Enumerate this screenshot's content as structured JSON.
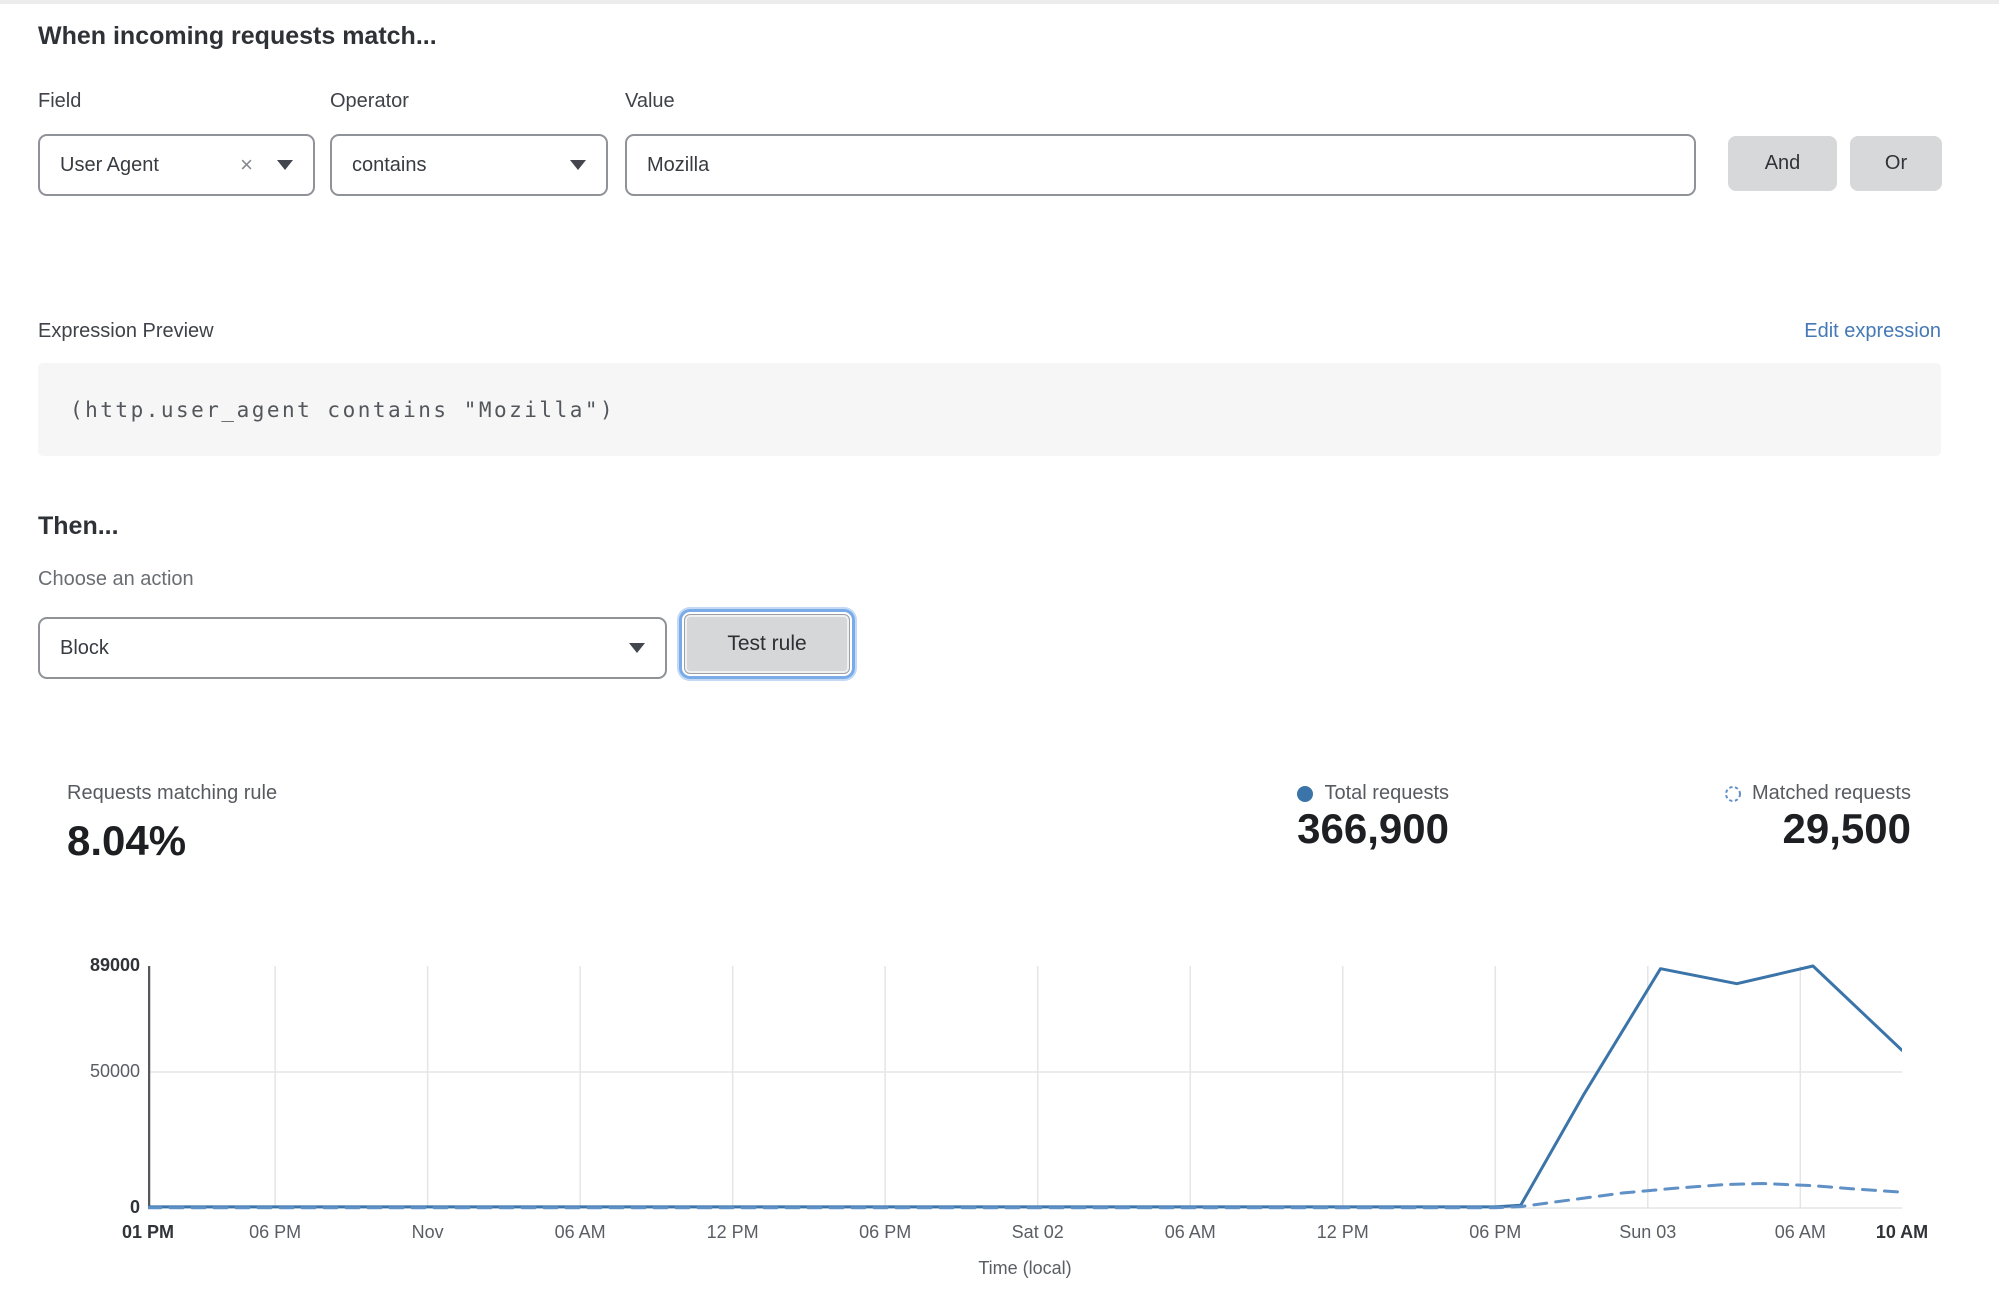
{
  "rule_builder": {
    "heading": "When incoming requests match...",
    "field": {
      "label": "Field",
      "value": "User Agent"
    },
    "operator": {
      "label": "Operator",
      "value": "contains"
    },
    "value": {
      "label": "Value",
      "value": "Mozilla"
    },
    "and_label": "And",
    "or_label": "Or"
  },
  "expression": {
    "label": "Expression Preview",
    "edit_link": "Edit expression",
    "code": "(http.user_agent contains \"Mozilla\")"
  },
  "action": {
    "heading": "Then...",
    "label": "Choose an action",
    "value": "Block",
    "test_button": "Test rule"
  },
  "stats": {
    "matching": {
      "label": "Requests matching rule",
      "value": "8.04%"
    },
    "total": {
      "label": "Total requests",
      "value": "366,900"
    },
    "matched": {
      "label": "Matched requests",
      "value": "29,500"
    }
  },
  "chart_data": {
    "type": "line",
    "title": "",
    "xlabel": "Time (local)",
    "ylabel": "",
    "ylim": [
      0,
      89000
    ],
    "x_hours_total": 69,
    "grid": true,
    "legend_position": "top-right",
    "colors": {
      "total": "#3a74a8",
      "matched": "#5f90c6",
      "grid": "#e5e5e5",
      "axis": "#54575c"
    },
    "y_ticks": [
      {
        "value": 0,
        "label": "0",
        "bold": true
      },
      {
        "value": 50000,
        "label": "50000",
        "bold": false
      },
      {
        "value": 89000,
        "label": "89000",
        "bold": true
      }
    ],
    "x_ticks": [
      {
        "hour": 0,
        "label": "01 PM",
        "bold": true
      },
      {
        "hour": 5,
        "label": "06 PM",
        "bold": false
      },
      {
        "hour": 11,
        "label": "Nov",
        "bold": false
      },
      {
        "hour": 17,
        "label": "06 AM",
        "bold": false
      },
      {
        "hour": 23,
        "label": "12 PM",
        "bold": false
      },
      {
        "hour": 29,
        "label": "06 PM",
        "bold": false
      },
      {
        "hour": 35,
        "label": "Sat 02",
        "bold": false
      },
      {
        "hour": 41,
        "label": "06 AM",
        "bold": false
      },
      {
        "hour": 47,
        "label": "12 PM",
        "bold": false
      },
      {
        "hour": 53,
        "label": "06 PM",
        "bold": false
      },
      {
        "hour": 59,
        "label": "Sun 03",
        "bold": false
      },
      {
        "hour": 65,
        "label": "06 AM",
        "bold": false
      },
      {
        "hour": 69,
        "label": "10 AM",
        "bold": true
      }
    ],
    "series": [
      {
        "name": "Total requests",
        "style": "solid",
        "points": [
          [
            0,
            400
          ],
          [
            5,
            400
          ],
          [
            11,
            400
          ],
          [
            17,
            400
          ],
          [
            23,
            400
          ],
          [
            29,
            400
          ],
          [
            35,
            400
          ],
          [
            41,
            400
          ],
          [
            47,
            400
          ],
          [
            53,
            400
          ],
          [
            54,
            1000
          ],
          [
            56.5,
            42000
          ],
          [
            59.5,
            88000
          ],
          [
            62.5,
            82500
          ],
          [
            65.5,
            89000
          ],
          [
            69,
            58000
          ]
        ]
      },
      {
        "name": "Matched requests",
        "style": "dashed",
        "points": [
          [
            0,
            100
          ],
          [
            5,
            100
          ],
          [
            11,
            100
          ],
          [
            17,
            100
          ],
          [
            23,
            100
          ],
          [
            29,
            100
          ],
          [
            35,
            100
          ],
          [
            41,
            100
          ],
          [
            47,
            100
          ],
          [
            53,
            100
          ],
          [
            54,
            500
          ],
          [
            56,
            3000
          ],
          [
            58,
            5500
          ],
          [
            60,
            7200
          ],
          [
            62,
            8600
          ],
          [
            63.5,
            9000
          ],
          [
            65.5,
            8200
          ],
          [
            67,
            7100
          ],
          [
            69,
            5800
          ]
        ]
      }
    ]
  }
}
